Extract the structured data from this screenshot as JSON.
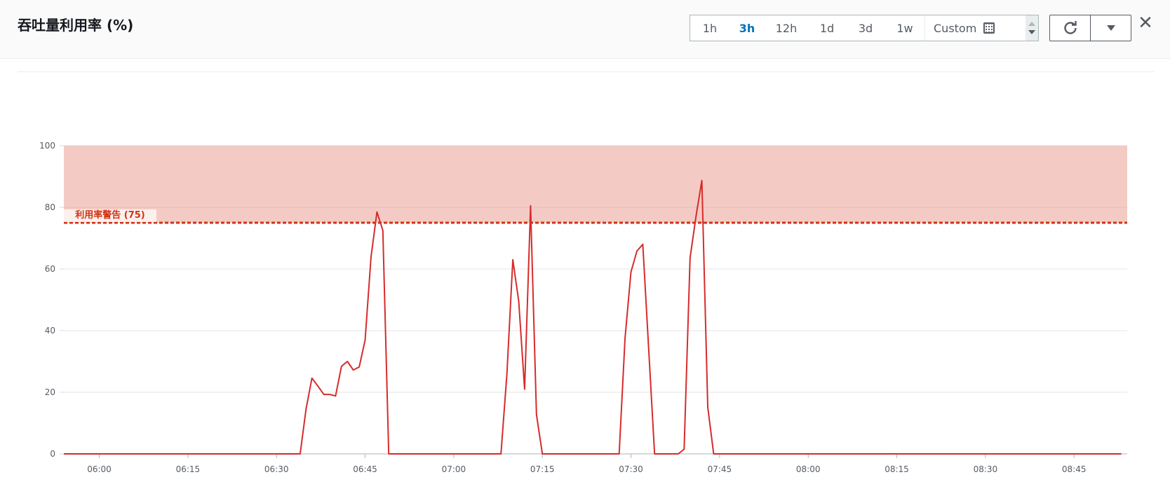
{
  "header": {
    "title": "吞吐量利用率 (%)",
    "ranges": [
      "1h",
      "3h",
      "12h",
      "1d",
      "3d",
      "1w"
    ],
    "active_range": "3h",
    "custom_label": "Custom",
    "icons": {
      "calendar": "calendar-icon",
      "refresh": "refresh-icon",
      "dropdown": "caret-down-icon",
      "close": "close-icon"
    }
  },
  "colors": {
    "line": "#d62b2b",
    "threshold": "#d13212",
    "band": "#f4cbc4",
    "active": "#0073bb"
  },
  "chart_data": {
    "type": "line",
    "title": "",
    "xlabel": "",
    "ylabel": "",
    "xlim": [
      "05:54",
      "08:54"
    ],
    "ylim": [
      0,
      100
    ],
    "yticks": [
      0,
      20,
      40,
      60,
      80,
      100
    ],
    "xticks": [
      "06:00",
      "06:15",
      "06:30",
      "06:45",
      "07:00",
      "07:15",
      "07:30",
      "07:45",
      "08:00",
      "08:15",
      "08:30",
      "08:45"
    ],
    "grid": true,
    "threshold": {
      "label": "利用率警告 (75)",
      "value": 75,
      "band": [
        75,
        100
      ]
    },
    "points": [
      [
        "05:54",
        0
      ],
      [
        "06:34",
        0
      ],
      [
        "06:35",
        14.5
      ],
      [
        "06:36",
        24.6
      ],
      [
        "06:37",
        22
      ],
      [
        "06:38",
        19.3
      ],
      [
        "06:39",
        19.3
      ],
      [
        "06:40",
        18.8
      ],
      [
        "06:41",
        28.4
      ],
      [
        "06:42",
        30
      ],
      [
        "06:43",
        27.2
      ],
      [
        "06:44",
        28.2
      ],
      [
        "06:45",
        36.9
      ],
      [
        "06:46",
        64
      ],
      [
        "06:47",
        78.5
      ],
      [
        "06:48",
        72.5
      ],
      [
        "06:49",
        0
      ],
      [
        "07:08",
        0
      ],
      [
        "07:09",
        26
      ],
      [
        "07:10",
        63
      ],
      [
        "07:11",
        49.6
      ],
      [
        "07:12",
        21
      ],
      [
        "07:13",
        80.5
      ],
      [
        "07:14",
        12.8
      ],
      [
        "07:15",
        0
      ],
      [
        "07:28",
        0
      ],
      [
        "07:29",
        37.6
      ],
      [
        "07:30",
        59
      ],
      [
        "07:31",
        65.8
      ],
      [
        "07:32",
        68
      ],
      [
        "07:33",
        34
      ],
      [
        "07:34",
        0
      ],
      [
        "07:38",
        0
      ],
      [
        "07:39",
        1.5
      ],
      [
        "07:40",
        63.6
      ],
      [
        "07:41",
        77
      ],
      [
        "07:42",
        88.7
      ],
      [
        "07:43",
        15.2
      ],
      [
        "07:44",
        0
      ],
      [
        "08:53",
        0
      ]
    ]
  }
}
